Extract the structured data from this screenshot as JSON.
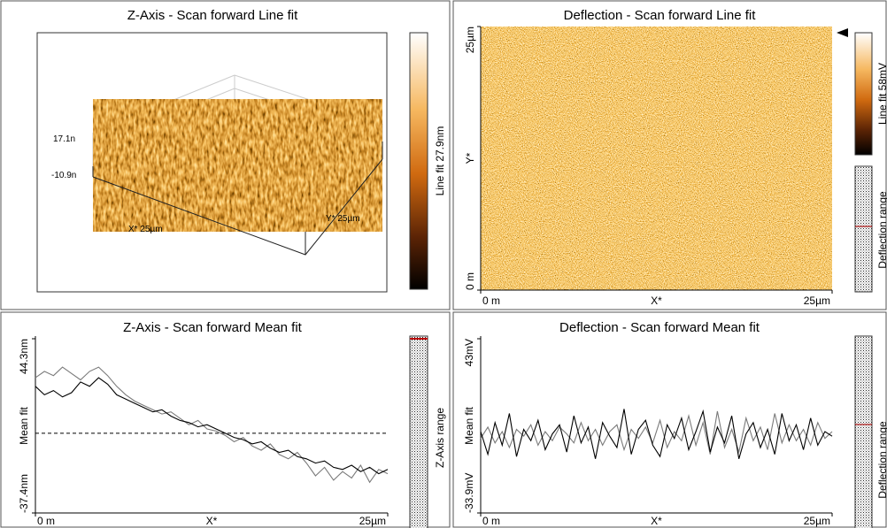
{
  "panels": [
    {
      "title": "Z-Axis - Scan forward   Line fit",
      "z_top_label": "17.1n",
      "z_bottom_label": "-10.9n",
      "x_label": "X* 25µm",
      "y_label": "Y* 25µm",
      "colorbar_label": "Line fit 27.9nm"
    },
    {
      "title": "Deflection - Scan forward   Line fit",
      "xlim": [
        0,
        25
      ],
      "xticks": [
        {
          "value": 0,
          "label": "0 m"
        },
        {
          "value": 25,
          "label": "25µm"
        }
      ],
      "x_label": "X*",
      "ylim": [
        0,
        25
      ],
      "yticks": [
        {
          "value": 0,
          "label": "0 m"
        },
        {
          "value": 25,
          "label": "25µm"
        }
      ],
      "y_label": "Y*",
      "colorbar_label": "Line fit 58mV",
      "range_label": "Deflection range"
    },
    {
      "title": "Z-Axis - Scan forward   Mean fit",
      "y_label": "Mean fit",
      "ylim": [
        -37.4,
        44.3
      ],
      "yticks": [
        {
          "value": 44.3,
          "label": "44.3nm"
        },
        {
          "value": -37.4,
          "label": "-37.4nm"
        }
      ],
      "xlim": [
        0,
        25
      ],
      "xticks": [
        {
          "value": 0,
          "label": "0 m"
        },
        {
          "value": 25,
          "label": "25µm"
        }
      ],
      "x_label": "X*",
      "reference_line": true,
      "range_label": "Z-Axis range",
      "series": [
        {
          "color": "#000000",
          "values": [
            22,
            18,
            20,
            17,
            19,
            24,
            22,
            26,
            23,
            18,
            16,
            14,
            12,
            10,
            11,
            8,
            6,
            5,
            3,
            4,
            2,
            0,
            -2,
            -3,
            -5,
            -4,
            -7,
            -9,
            -8,
            -11,
            -12,
            -14,
            -13,
            -16,
            -17,
            -15,
            -18,
            -16,
            -19,
            -17
          ]
        },
        {
          "color": "#7a7a7a",
          "values": [
            26,
            29,
            27,
            31,
            28,
            25,
            29,
            31,
            27,
            22,
            18,
            15,
            13,
            11,
            9,
            10,
            7,
            4,
            6,
            2,
            1,
            -1,
            -4,
            -2,
            -6,
            -8,
            -5,
            -10,
            -12,
            -9,
            -14,
            -20,
            -16,
            -22,
            -18,
            -21,
            -15,
            -23,
            -17,
            -19
          ]
        }
      ]
    },
    {
      "title": "Deflection - Scan forward   Mean fit",
      "y_label": "Mean fit",
      "ylim": [
        -33.9,
        43
      ],
      "yticks": [
        {
          "value": 43,
          "label": "43mV"
        },
        {
          "value": -33.9,
          "label": "-33.9mV"
        }
      ],
      "xlim": [
        0,
        25
      ],
      "xticks": [
        {
          "value": 0,
          "label": "0 m"
        },
        {
          "value": 25,
          "label": "25µm"
        }
      ],
      "x_label": "X*",
      "reference_line": false,
      "range_label": "Deflection range",
      "series": [
        {
          "color": "#000000",
          "values": [
            2,
            -8,
            6,
            -4,
            10,
            -9,
            3,
            -2,
            7,
            -6,
            1,
            5,
            -7,
            9,
            -3,
            4,
            -10,
            6,
            0,
            -5,
            12,
            -8,
            3,
            7,
            -4,
            -9,
            5,
            -1,
            8,
            -6,
            2,
            11,
            -7,
            4,
            -3,
            9,
            -10,
            1,
            6,
            -5,
            3,
            -8,
            10,
            -2,
            5,
            -6,
            8,
            -4,
            2,
            0
          ]
        },
        {
          "color": "#7a7a7a",
          "values": [
            -1,
            4,
            -3,
            2,
            -5,
            3,
            0,
            5,
            -4,
            2,
            -2,
            4,
            1,
            -3,
            6,
            -2,
            3,
            -4,
            2,
            5,
            -6,
            3,
            -1,
            4,
            -3,
            7,
            -5,
            2,
            -2,
            9,
            -4,
            6,
            -8,
            11,
            -5,
            3,
            -7,
            8,
            -2,
            4,
            -6,
            10,
            -3,
            5,
            -2,
            3,
            -4,
            6,
            -1,
            2
          ]
        }
      ]
    }
  ]
}
